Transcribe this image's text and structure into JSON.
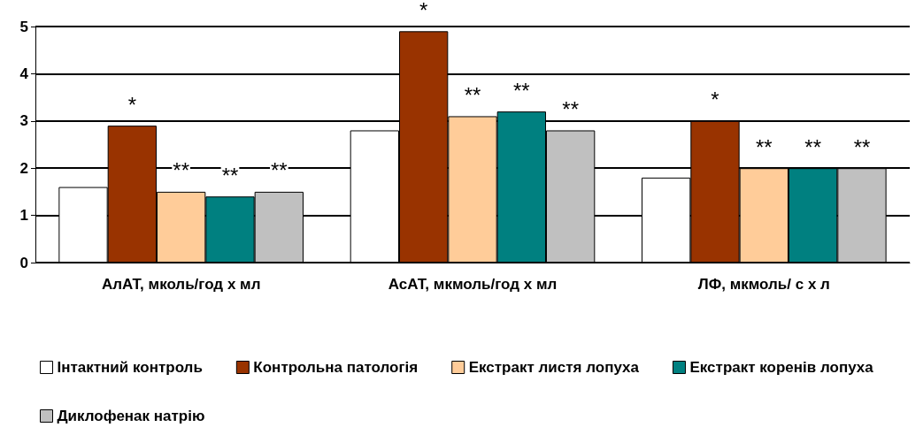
{
  "chart_data": {
    "type": "bar",
    "categories": [
      "АлАТ, мколь/год х мл",
      "АсАТ, мкмоль/год х мл",
      "ЛФ, мкмоль/ с х л"
    ],
    "series": [
      {
        "name": "Інтактний контроль",
        "color": "#ffffff",
        "values": [
          1.6,
          2.8,
          1.8
        ]
      },
      {
        "name": "Контрольна патологія",
        "color": "#993300",
        "values": [
          2.9,
          4.9,
          3.0
        ],
        "value_labels": [
          "*",
          "*",
          "*"
        ]
      },
      {
        "name": "Екстракт листя лопуха",
        "color": "#ffcc99",
        "values": [
          1.5,
          3.1,
          2.0
        ],
        "value_labels": [
          "**",
          "**",
          "**"
        ]
      },
      {
        "name": "Екстракт коренів лопуха",
        "color": "#008080",
        "values": [
          1.4,
          3.2,
          2.0
        ],
        "value_labels": [
          "**",
          "**",
          "**"
        ]
      },
      {
        "name": "Диклофенак натрію",
        "color": "#c0c0c0",
        "values": [
          1.5,
          2.8,
          2.0
        ],
        "value_labels": [
          "**",
          "**",
          "**"
        ]
      }
    ],
    "ylim": [
      0,
      5
    ],
    "yticks": [
      0,
      1,
      2,
      3,
      4,
      5
    ],
    "grid": "y",
    "legend": "bottom"
  }
}
